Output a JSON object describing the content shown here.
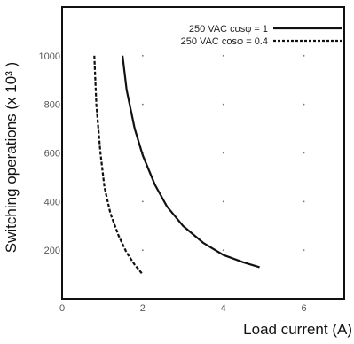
{
  "chart_data": {
    "type": "line",
    "xlabel": "Load current (A)",
    "ylabel": "Switching operations (x 10³ )",
    "xlim": [
      0,
      7
    ],
    "ylim": [
      0,
      1200
    ],
    "x_ticks": [
      {
        "value": 0,
        "label": "0"
      },
      {
        "value": 2,
        "label": "2"
      },
      {
        "value": 4,
        "label": "4"
      },
      {
        "value": 6,
        "label": "6"
      }
    ],
    "y_ticks": [
      {
        "value": 200,
        "label": "200"
      },
      {
        "value": 400,
        "label": "400"
      },
      {
        "value": 600,
        "label": "600"
      },
      {
        "value": 800,
        "label": "800"
      },
      {
        "value": 1000,
        "label": "1000"
      }
    ],
    "grid": "dots",
    "legend_position": "top-right",
    "series": [
      {
        "name": "250 VAC cosφ = 1",
        "style": "solid",
        "color": "#111111",
        "x": [
          1.5,
          1.6,
          1.8,
          2.0,
          2.3,
          2.6,
          3.0,
          3.5,
          4.0,
          4.5,
          4.9
        ],
        "y": [
          1000,
          860,
          700,
          590,
          470,
          380,
          300,
          230,
          180,
          150,
          130
        ]
      },
      {
        "name": "250 VAC cosφ = 0.4",
        "style": "dashed",
        "color": "#111111",
        "x": [
          0.8,
          0.85,
          0.95,
          1.05,
          1.2,
          1.4,
          1.6,
          1.8,
          2.0
        ],
        "y": [
          1000,
          800,
          600,
          460,
          350,
          260,
          190,
          140,
          100
        ]
      }
    ]
  }
}
